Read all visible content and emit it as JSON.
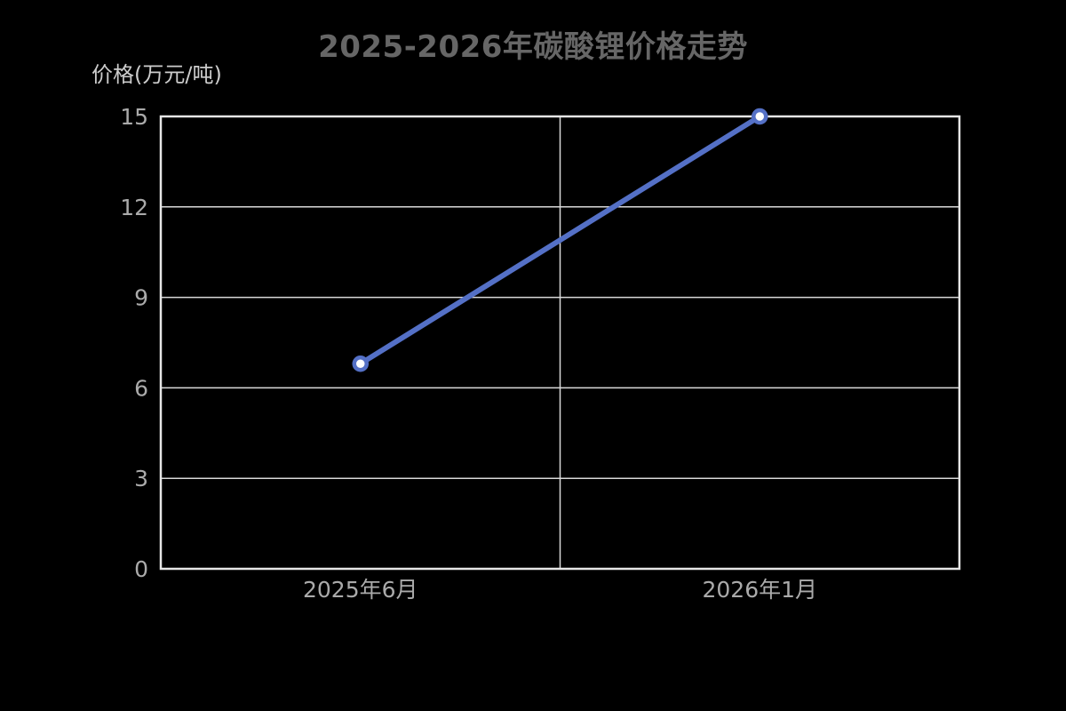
{
  "chart_data": {
    "type": "line",
    "title": "2025-2026年碳酸锂价格走势",
    "ylabel": "价格(万元/吨)",
    "xlabel": "",
    "categories": [
      "2025年6月",
      "2026年1月"
    ],
    "values": [
      6.8,
      15
    ],
    "ylim": [
      0,
      15
    ],
    "yticks": [
      0,
      3,
      6,
      9,
      12,
      15
    ],
    "grid": true,
    "legend": "none",
    "marker": "circle"
  },
  "colors": {
    "background": "#000000",
    "title": "#666666",
    "axis_name": "#cccccc",
    "tick_label": "#aaaaaa",
    "grid_line": "#d9d9d9",
    "axis_border": "#e6e6e6",
    "series_line": "#5470c6",
    "marker_fill": "#ffffff"
  }
}
